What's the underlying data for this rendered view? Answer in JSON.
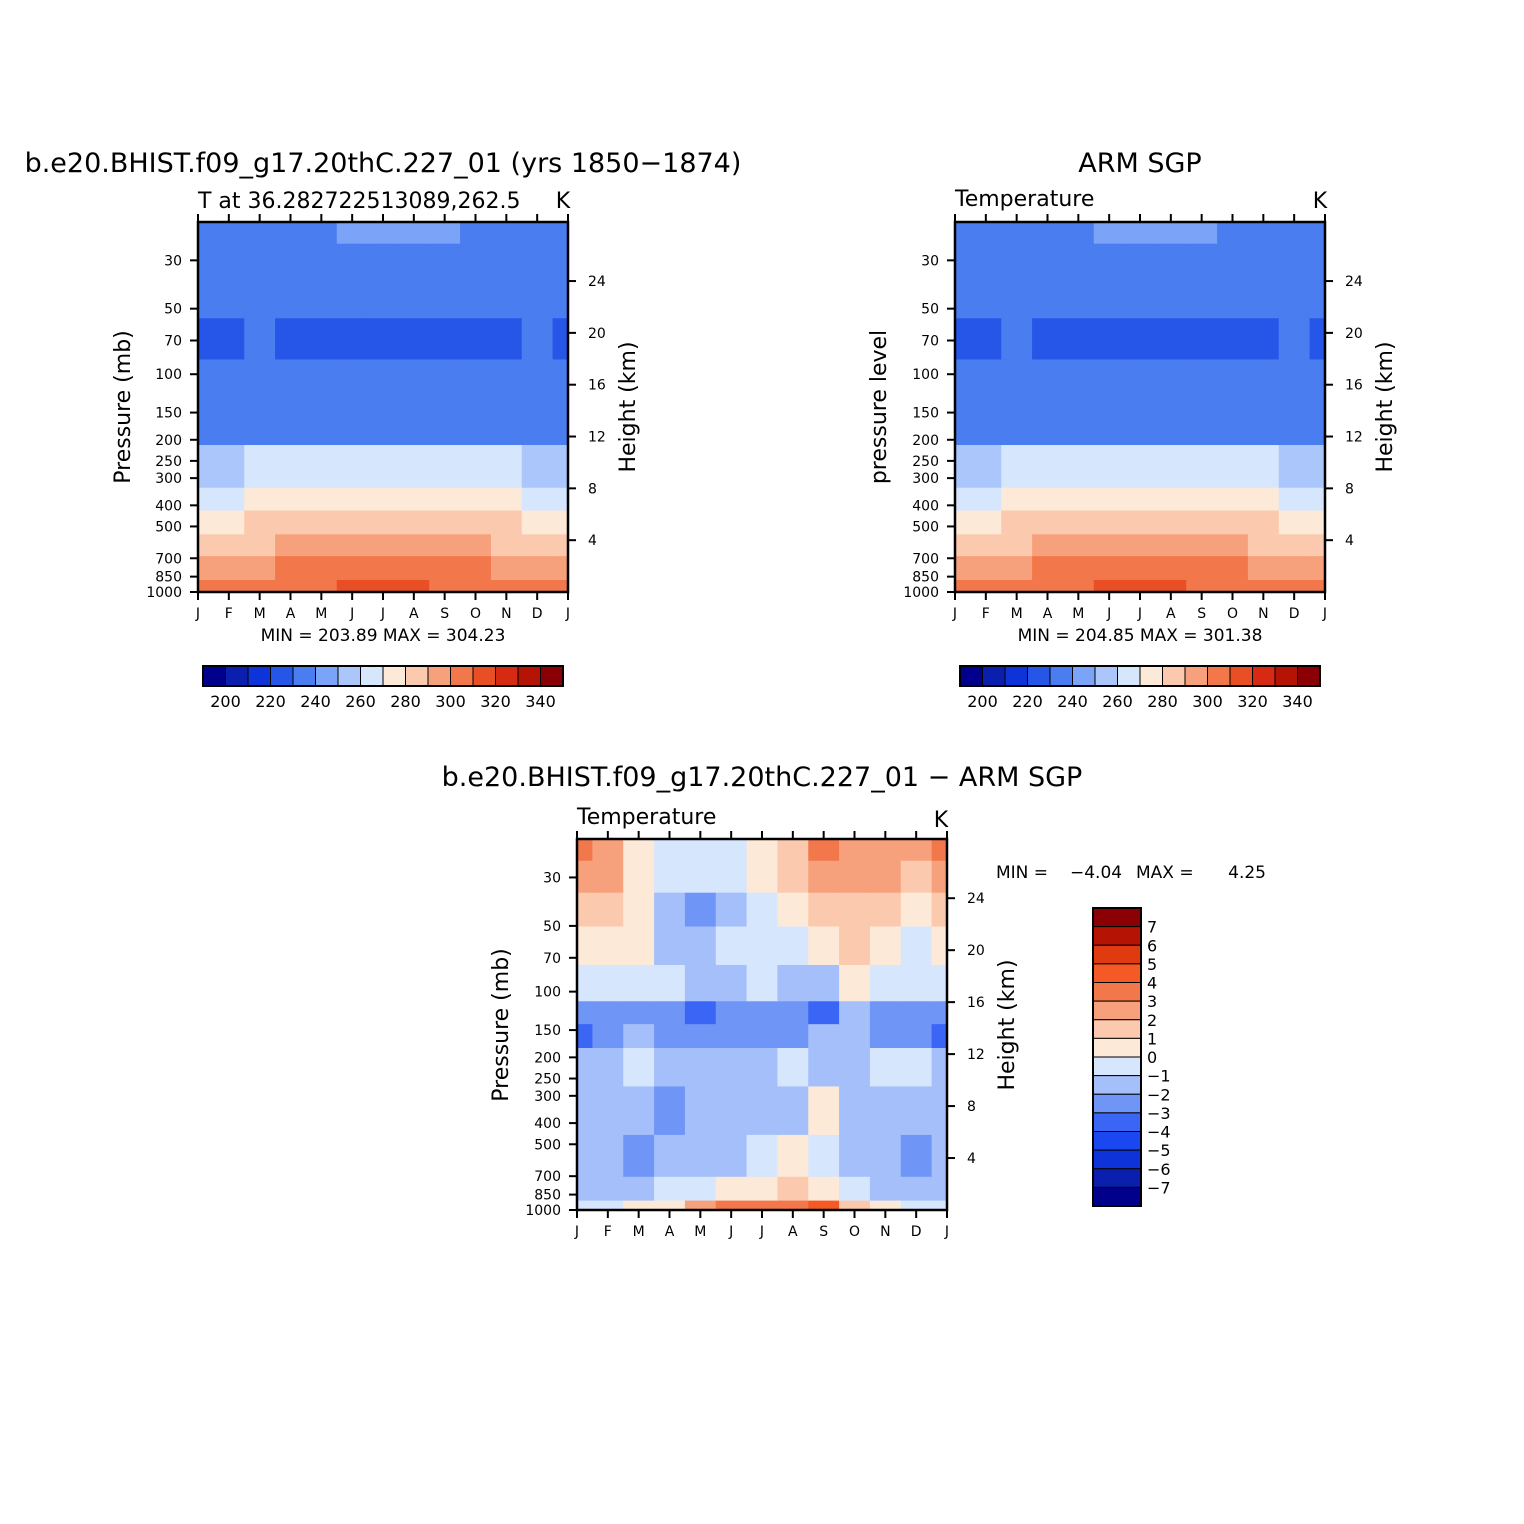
{
  "colors": {
    "temp_levels": [
      "#00008c",
      "#0a1fae",
      "#0d33d9",
      "#2656e8",
      "#4a7df0",
      "#7ba3f7",
      "#abc6fb",
      "#d6e6fd",
      "#fde9d8",
      "#fbc9ad",
      "#f7a17c",
      "#f2784c",
      "#e84f24",
      "#d62b12",
      "#b51405",
      "#8a0005"
    ],
    "diff_levels": [
      "#00008c",
      "#0a1fae",
      "#0d33d9",
      "#1a47f0",
      "#3a65f5",
      "#6f95f7",
      "#a4bff9",
      "#d6e6fd",
      "#fde9d8",
      "#fbc9ad",
      "#f7a17c",
      "#f2784c",
      "#f55a26",
      "#e03a10",
      "#b51405",
      "#8a0005"
    ]
  },
  "chart_data": [
    {
      "type": "heatmap",
      "title": "b.e20.BHIST.f09_g17.20thC.227_01 (yrs 1850−1874)",
      "subtitle_left": "T at 36.282722513089,262.5",
      "subtitle_right": "K",
      "ylabel": "Pressure (mb)",
      "ylabel_right": "Height (km)",
      "x_ticks": [
        "J",
        "F",
        "M",
        "A",
        "M",
        "J",
        "J",
        "A",
        "S",
        "O",
        "N",
        "D",
        "J"
      ],
      "y_ticks": [
        "30",
        "50",
        "70",
        "100",
        "150",
        "200",
        "250",
        "300",
        "400",
        "500",
        "700",
        "850",
        "1000"
      ],
      "y_right_ticks": [
        "24",
        "20",
        "16",
        "12",
        "8",
        "4"
      ],
      "stats": "MIN = 203.89 MAX = 304.23",
      "colorbar_labels": [
        "200",
        "220",
        "240",
        "260",
        "280",
        "300",
        "320",
        "340"
      ],
      "bands": [
        {
          "p_top": 1000,
          "values": [
            294.5,
            295.5,
            296,
            297.5,
            299,
            301,
            302.5,
            302,
            299.5,
            297,
            295,
            294.5,
            294.5
          ]
        },
        {
          "p_top": 875,
          "values": [
            284,
            286,
            288,
            291,
            293,
            295,
            296,
            296,
            294,
            291,
            288,
            285,
            284
          ]
        },
        {
          "p_top": 680,
          "values": [
            276,
            277,
            279,
            281,
            283,
            285,
            286,
            286,
            284,
            282,
            279,
            277,
            276
          ]
        },
        {
          "p_top": 540,
          "values": [
            267,
            268,
            270,
            272,
            274,
            276,
            277,
            277,
            275,
            273,
            270,
            268,
            267
          ]
        },
        {
          "p_top": 420,
          "values": [
            257,
            258,
            260,
            262,
            264,
            266,
            267,
            267,
            265,
            263,
            260,
            258,
            257
          ]
        },
        {
          "p_top": 330,
          "values": [
            247,
            248,
            250,
            252,
            254,
            256,
            257,
            257,
            255,
            253,
            250,
            248,
            247
          ]
        },
        {
          "p_top": 210,
          "values": [
            223,
            223,
            223,
            223,
            223,
            223,
            223,
            223,
            223,
            223,
            223,
            223,
            223
          ]
        },
        {
          "p_top": 85,
          "values": [
            216,
            217,
            221,
            219,
            214,
            212,
            212,
            212,
            213,
            215,
            218,
            220,
            216
          ]
        },
        {
          "p_top": 55,
          "values": [
            226,
            226,
            226,
            226,
            226,
            226,
            226,
            226,
            226,
            226,
            226,
            226,
            226
          ]
        },
        {
          "p_top": 25,
          "values": [
            227,
            227,
            227,
            227,
            228,
            231,
            232,
            232,
            231,
            227,
            227,
            227,
            227
          ]
        }
      ]
    },
    {
      "type": "heatmap",
      "title": "ARM SGP",
      "subtitle_left": "Temperature",
      "subtitle_right": "K",
      "ylabel": "pressure level",
      "ylabel_right": "Height (km)",
      "x_ticks": [
        "J",
        "F",
        "M",
        "A",
        "M",
        "J",
        "J",
        "A",
        "S",
        "O",
        "N",
        "D",
        "J"
      ],
      "y_ticks": [
        "30",
        "50",
        "70",
        "100",
        "150",
        "200",
        "250",
        "300",
        "400",
        "500",
        "700",
        "850",
        "1000"
      ],
      "y_right_ticks": [
        "24",
        "20",
        "16",
        "12",
        "8",
        "4"
      ],
      "stats": "MIN = 204.85 MAX = 301.38",
      "colorbar_labels": [
        "200",
        "220",
        "240",
        "260",
        "280",
        "300",
        "320",
        "340"
      ],
      "bands": [
        {
          "p_top": 1000,
          "values": [
            294.5,
            295,
            296.5,
            298,
            299,
            300.5,
            301,
            301,
            299.5,
            297,
            295,
            294.5,
            294.5
          ]
        },
        {
          "p_top": 875,
          "values": [
            284,
            286,
            288,
            291,
            293,
            295,
            296,
            296,
            294,
            291,
            288,
            285,
            284
          ]
        },
        {
          "p_top": 680,
          "values": [
            276,
            277,
            279,
            281,
            283,
            285,
            286,
            286,
            284,
            282,
            279,
            277,
            276
          ]
        },
        {
          "p_top": 540,
          "values": [
            267,
            268,
            270,
            272,
            274,
            276,
            277,
            277,
            275,
            273,
            270,
            268,
            267
          ]
        },
        {
          "p_top": 420,
          "values": [
            257,
            258,
            260,
            262,
            264,
            266,
            267,
            267,
            265,
            263,
            260,
            258,
            257
          ]
        },
        {
          "p_top": 330,
          "values": [
            247,
            248,
            250,
            252,
            254,
            256,
            257,
            257,
            255,
            253,
            250,
            248,
            247
          ]
        },
        {
          "p_top": 210,
          "values": [
            223,
            223,
            223,
            223,
            223,
            223,
            223,
            223,
            223,
            223,
            223,
            223,
            223
          ]
        },
        {
          "p_top": 85,
          "values": [
            216,
            217,
            221,
            219,
            214,
            212,
            212,
            212,
            213,
            215,
            218,
            220,
            216
          ]
        },
        {
          "p_top": 55,
          "values": [
            226,
            226,
            226,
            226,
            226,
            226,
            226,
            226,
            226,
            226,
            226,
            226,
            226
          ]
        },
        {
          "p_top": 25,
          "values": [
            227,
            227,
            227,
            227,
            228,
            231,
            232,
            232,
            231,
            227,
            227,
            227,
            227
          ]
        }
      ]
    },
    {
      "type": "heatmap",
      "title": "b.e20.BHIST.f09_g17.20thC.227_01 − ARM SGP",
      "subtitle_left": "Temperature",
      "subtitle_right": "K",
      "ylabel": "Pressure (mb)",
      "ylabel_right": "Height (km)",
      "x_ticks": [
        "J",
        "F",
        "M",
        "A",
        "M",
        "J",
        "J",
        "A",
        "S",
        "O",
        "N",
        "D",
        "J"
      ],
      "y_ticks": [
        "30",
        "50",
        "70",
        "100",
        "150",
        "200",
        "250",
        "300",
        "400",
        "500",
        "700",
        "850",
        "1000"
      ],
      "y_right_ticks": [
        "24",
        "20",
        "16",
        "12",
        "8",
        "4"
      ],
      "stats_min_label": "MIN =",
      "stats_min": "−4.04",
      "stats_max_label": "MAX =",
      "stats_max": "4.25",
      "colorbar_labels": [
        "7",
        "6",
        "5",
        "4",
        "3",
        "2",
        "1",
        "0",
        "−1",
        "−2",
        "−3",
        "−4",
        "−5",
        "−6",
        "−7"
      ],
      "bands": [
        {
          "p_top": 1000,
          "values": [
            -0.5,
            -0.3,
            0.3,
            0.8,
            2.2,
            3.5,
            3.0,
            3.2,
            4.2,
            1.5,
            0.4,
            -0.3,
            -0.5
          ]
        },
        {
          "p_top": 900,
          "values": [
            -1.3,
            -1.2,
            -1.1,
            -1.0,
            -0.6,
            0.4,
            0.8,
            1.2,
            0.9,
            -1.0,
            -1.2,
            -1.3,
            -1.3
          ]
        },
        {
          "p_top": 700,
          "values": [
            -1.4,
            -1.4,
            -2.2,
            -1.6,
            -1.1,
            -1.1,
            -1.0,
            0.4,
            -0.7,
            -1.2,
            -1.4,
            -2.1,
            -1.4
          ]
        },
        {
          "p_top": 450,
          "values": [
            -1.4,
            -1.5,
            -1.4,
            -2.1,
            -1.5,
            -1.3,
            -1.2,
            -1.1,
            0.3,
            -1.2,
            -1.4,
            -1.4,
            -1.4
          ]
        },
        {
          "p_top": 270,
          "values": [
            -1.5,
            -1.6,
            -0.7,
            -1.6,
            -1.5,
            -1.5,
            -1.6,
            -0.4,
            -1.5,
            -1.5,
            -0.6,
            -1.0,
            -1.5
          ]
        },
        {
          "p_top": 180,
          "values": [
            -3.3,
            -2.4,
            -1.8,
            -2.4,
            -2.5,
            -2.4,
            -2.5,
            -2.1,
            -1.3,
            -1.4,
            -2.2,
            -2.1,
            -3.3
          ]
        },
        {
          "p_top": 140,
          "values": [
            -2.6,
            -2.3,
            -2.6,
            -2.5,
            -3.4,
            -2.4,
            -2.1,
            -2.4,
            -3.1,
            -1.6,
            -2.4,
            -2.7,
            -2.6
          ]
        },
        {
          "p_top": 110,
          "values": [
            -0.4,
            -0.9,
            -0.5,
            -0.8,
            -1.3,
            -1.4,
            -1.0,
            -1.3,
            -1.4,
            0.2,
            -0.5,
            -0.7,
            -0.4
          ]
        },
        {
          "p_top": 75,
          "values": [
            0.6,
            0.7,
            0.8,
            -1.6,
            -1.5,
            -0.7,
            -0.8,
            -0.5,
            0.6,
            1.3,
            0.3,
            -0.4,
            0.6
          ]
        },
        {
          "p_top": 50,
          "values": [
            1.2,
            1.0,
            0.7,
            -1.2,
            -2.6,
            -1.6,
            -0.5,
            0.5,
            1.4,
            1.6,
            1.2,
            0.6,
            1.2
          ]
        },
        {
          "p_top": 35,
          "values": [
            2.6,
            2.1,
            0.3,
            -0.5,
            -0.8,
            -0.4,
            0.3,
            1.5,
            2.2,
            2.4,
            2.3,
            1.6,
            2.6
          ]
        },
        {
          "p_top": 25,
          "values": [
            3.2,
            2.9,
            0.4,
            -0.6,
            -0.7,
            -0.3,
            0.5,
            1.8,
            3.3,
            2.6,
            2.5,
            2.1,
            3.2
          ]
        }
      ]
    }
  ]
}
